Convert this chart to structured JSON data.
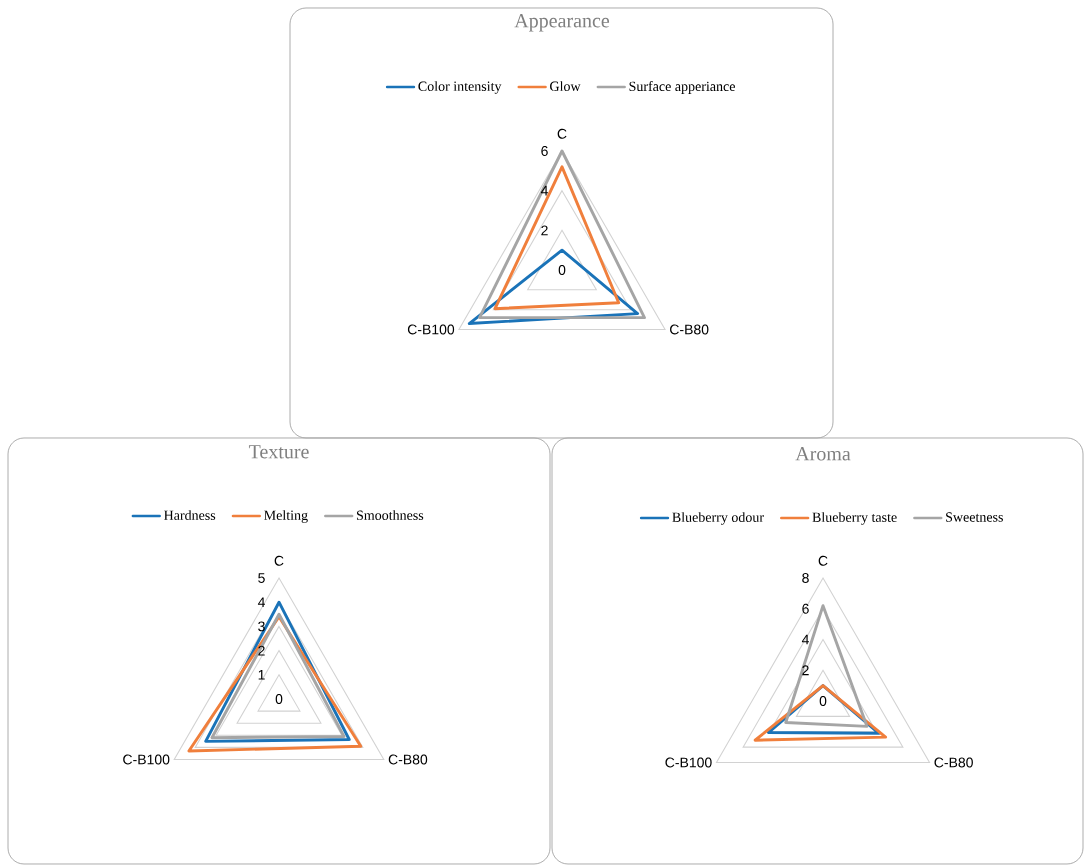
{
  "chart_data": [
    {
      "type": "radar",
      "title": "Appearance",
      "categories": [
        "C",
        "C-B80",
        "C-B100"
      ],
      "ylim": [
        0,
        6
      ],
      "yticks": [
        0,
        2,
        4,
        6
      ],
      "grid": true,
      "legend": "top",
      "series": [
        {
          "name": "Color intensity",
          "color": "#1a73b8",
          "values": [
            1.0,
            4.4,
            5.4
          ]
        },
        {
          "name": "Glow",
          "color": "#f07f3c",
          "values": [
            5.2,
            3.3,
            3.9
          ]
        },
        {
          "name": "Surface apperiance",
          "color": "#a5a5a5",
          "values": [
            6.0,
            4.8,
            4.8
          ]
        }
      ]
    },
    {
      "type": "radar",
      "title": "Texture",
      "categories": [
        "C",
        "C-B80",
        "C-B100"
      ],
      "ylim": [
        0,
        5
      ],
      "yticks": [
        0,
        1,
        2,
        3,
        4,
        5
      ],
      "grid": true,
      "legend": "top",
      "series": [
        {
          "name": "Hardness",
          "color": "#1a73b8",
          "values": [
            4.0,
            3.35,
            3.5
          ]
        },
        {
          "name": "Melting",
          "color": "#f07f3c",
          "values": [
            3.4,
            3.9,
            4.3
          ]
        },
        {
          "name": "Smoothness",
          "color": "#a5a5a5",
          "values": [
            3.5,
            3.1,
            3.2
          ]
        }
      ]
    },
    {
      "type": "radar",
      "title": "Aroma",
      "categories": [
        "C",
        "C-B80",
        "C-B100"
      ],
      "ylim": [
        0,
        8
      ],
      "yticks": [
        0,
        2,
        4,
        6,
        8
      ],
      "grid": true,
      "legend": "top",
      "series": [
        {
          "name": "Blueberry odour",
          "color": "#1a73b8",
          "values": [
            1.0,
            4.2,
            4.1
          ]
        },
        {
          "name": "Blueberry taste",
          "color": "#f07f3c",
          "values": [
            1.0,
            4.7,
            5.1
          ]
        },
        {
          "name": "Sweetness",
          "color": "#a5a5a5",
          "values": [
            6.2,
            3.3,
            2.8
          ]
        }
      ]
    }
  ]
}
